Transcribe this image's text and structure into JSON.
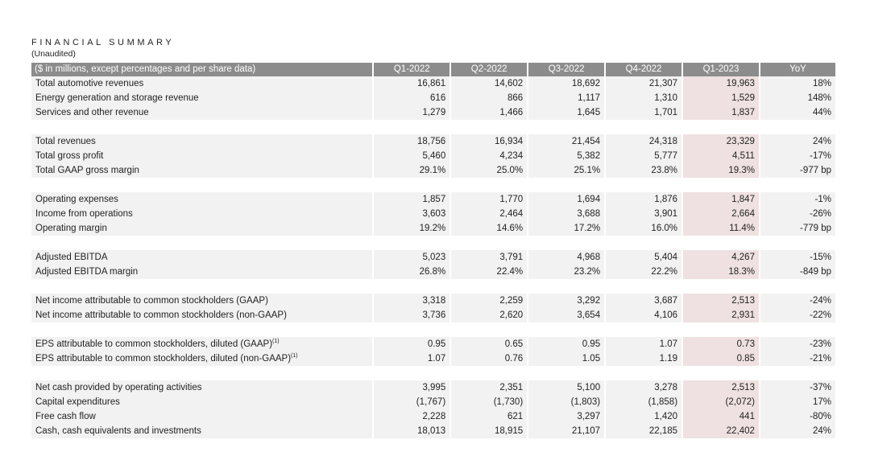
{
  "header": {
    "title": "FINANCIAL SUMMARY",
    "subtitle": "(Unaudited)"
  },
  "table": {
    "label_header": "($ in millions, except percentages and per share data)",
    "period_headers": [
      "Q1-2022",
      "Q2-2022",
      "Q3-2022",
      "Q4-2022",
      "Q1-2023",
      "YoY"
    ],
    "highlight_color": "#efe1e1",
    "header_color": "#8c8c8c",
    "groups": [
      {
        "rows": [
          {
            "label": "Total automotive revenues",
            "values": [
              "16,861",
              "14,602",
              "18,692",
              "21,307",
              "19,963",
              "18%"
            ]
          },
          {
            "label": "Energy generation and storage revenue",
            "values": [
              "616",
              "866",
              "1,117",
              "1,310",
              "1,529",
              "148%"
            ]
          },
          {
            "label": "Services and other revenue",
            "values": [
              "1,279",
              "1,466",
              "1,645",
              "1,701",
              "1,837",
              "44%"
            ]
          }
        ]
      },
      {
        "rows": [
          {
            "label": "Total revenues",
            "values": [
              "18,756",
              "16,934",
              "21,454",
              "24,318",
              "23,329",
              "24%"
            ]
          },
          {
            "label": "Total gross profit",
            "values": [
              "5,460",
              "4,234",
              "5,382",
              "5,777",
              "4,511",
              "-17%"
            ]
          },
          {
            "label": "Total GAAP gross margin",
            "values": [
              "29.1%",
              "25.0%",
              "25.1%",
              "23.8%",
              "19.3%",
              "-977 bp"
            ]
          }
        ]
      },
      {
        "rows": [
          {
            "label": "Operating expenses",
            "values": [
              "1,857",
              "1,770",
              "1,694",
              "1,876",
              "1,847",
              "-1%"
            ]
          },
          {
            "label": "Income from operations",
            "values": [
              "3,603",
              "2,464",
              "3,688",
              "3,901",
              "2,664",
              "-26%"
            ]
          },
          {
            "label": "Operating margin",
            "values": [
              "19.2%",
              "14.6%",
              "17.2%",
              "16.0%",
              "11.4%",
              "-779 bp"
            ]
          }
        ]
      },
      {
        "rows": [
          {
            "label": "Adjusted EBITDA",
            "values": [
              "5,023",
              "3,791",
              "4,968",
              "5,404",
              "4,267",
              "-15%"
            ]
          },
          {
            "label": "Adjusted EBITDA margin",
            "values": [
              "26.8%",
              "22.4%",
              "23.2%",
              "22.2%",
              "18.3%",
              "-849 bp"
            ]
          }
        ]
      },
      {
        "rows": [
          {
            "label": "Net income attributable to common stockholders (GAAP)",
            "values": [
              "3,318",
              "2,259",
              "3,292",
              "3,687",
              "2,513",
              "-24%"
            ]
          },
          {
            "label": "Net income attributable to common stockholders (non-GAAP)",
            "values": [
              "3,736",
              "2,620",
              "3,654",
              "4,106",
              "2,931",
              "-22%"
            ]
          }
        ]
      },
      {
        "rows": [
          {
            "label": "EPS attributable to common stockholders, diluted (GAAP)",
            "footnote": "(1)",
            "values": [
              "0.95",
              "0.65",
              "0.95",
              "1.07",
              "0.73",
              "-23%"
            ]
          },
          {
            "label": "EPS attributable to common stockholders, diluted (non-GAAP)",
            "footnote": "(1)",
            "values": [
              "1.07",
              "0.76",
              "1.05",
              "1.19",
              "0.85",
              "-21%"
            ]
          }
        ]
      },
      {
        "rows": [
          {
            "label": "Net cash provided by operating activities",
            "values": [
              "3,995",
              "2,351",
              "5,100",
              "3,278",
              "2,513",
              "-37%"
            ]
          },
          {
            "label": "Capital expenditures",
            "values": [
              "(1,767)",
              "(1,730)",
              "(1,803)",
              "(1,858)",
              "(2,072)",
              "17%"
            ]
          },
          {
            "label": "Free cash flow",
            "values": [
              "2,228",
              "621",
              "3,297",
              "1,420",
              "441",
              "-80%"
            ]
          },
          {
            "label": "Cash, cash equivalents and investments",
            "values": [
              "18,013",
              "18,915",
              "21,107",
              "22,185",
              "22,402",
              "24%"
            ]
          }
        ]
      }
    ]
  }
}
